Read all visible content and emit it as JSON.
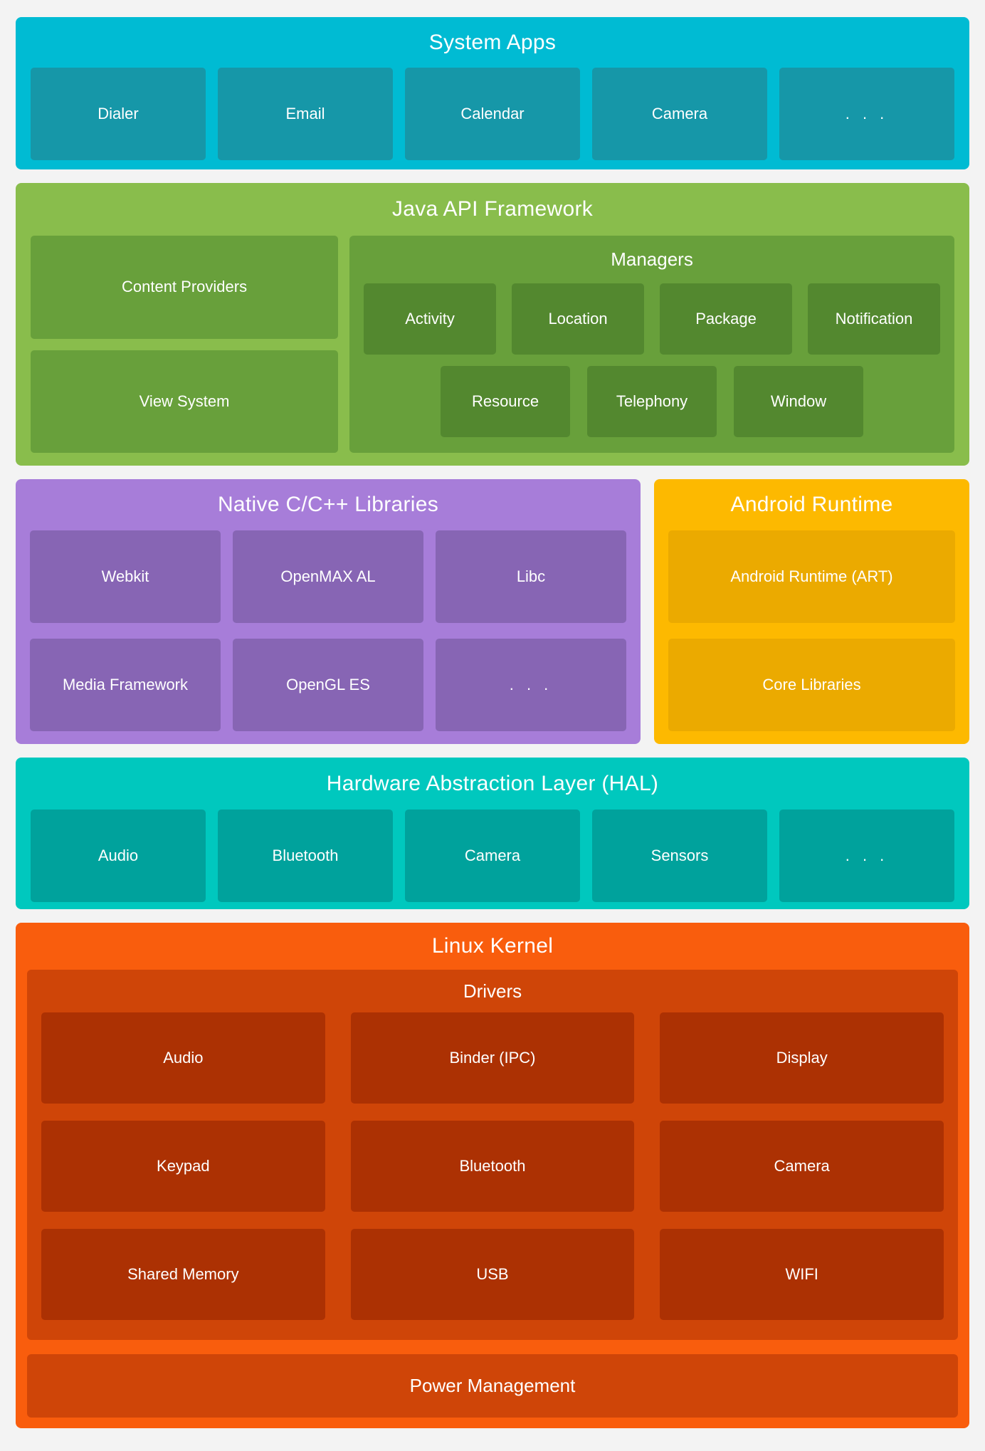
{
  "palette": {
    "page_bg": "#f3f3f3",
    "system_apps_bg": "#00bbd3",
    "system_apps_box": "#1697a8",
    "java_bg": "#89bd4c",
    "java_mid": "#68a03b",
    "java_dark": "#53882f",
    "native_bg": "#a77dd9",
    "native_box": "#8765b4",
    "runtime_bg": "#fdb900",
    "runtime_box": "#ebaa00",
    "hal_bg": "#00c8be",
    "hal_box": "#00a29c",
    "kernel_bg": "#f95d0d",
    "kernel_mid": "#cf4508",
    "kernel_box": "#ac3103",
    "text": "#ffffff"
  },
  "sections": {
    "system_apps": {
      "title": "System Apps",
      "boxes": [
        "Dialer",
        "Email",
        "Calendar",
        "Camera",
        ". . ."
      ]
    },
    "java_api": {
      "title": "Java API Framework",
      "left_boxes": [
        "Content Providers",
        "View System"
      ],
      "managers": {
        "title": "Managers",
        "row1": [
          "Activity",
          "Location",
          "Package",
          "Notification"
        ],
        "row2": [
          "Resource",
          "Telephony",
          "Window"
        ]
      }
    },
    "native_libs": {
      "title": "Native C/C++ Libraries",
      "boxes": [
        "Webkit",
        "OpenMAX AL",
        "Libc",
        "Media Framework",
        "OpenGL ES",
        ". . ."
      ]
    },
    "android_runtime": {
      "title": "Android Runtime",
      "boxes": [
        "Android Runtime (ART)",
        "Core Libraries"
      ]
    },
    "hal": {
      "title": "Hardware Abstraction Layer (HAL)",
      "boxes": [
        "Audio",
        "Bluetooth",
        "Camera",
        "Sensors",
        ". . ."
      ]
    },
    "linux_kernel": {
      "title": "Linux Kernel",
      "drivers": {
        "title": "Drivers",
        "boxes": [
          "Audio",
          "Binder (IPC)",
          "Display",
          "Keypad",
          "Bluetooth",
          "Camera",
          "Shared Memory",
          "USB",
          "WIFI"
        ]
      },
      "power": "Power Management"
    }
  }
}
